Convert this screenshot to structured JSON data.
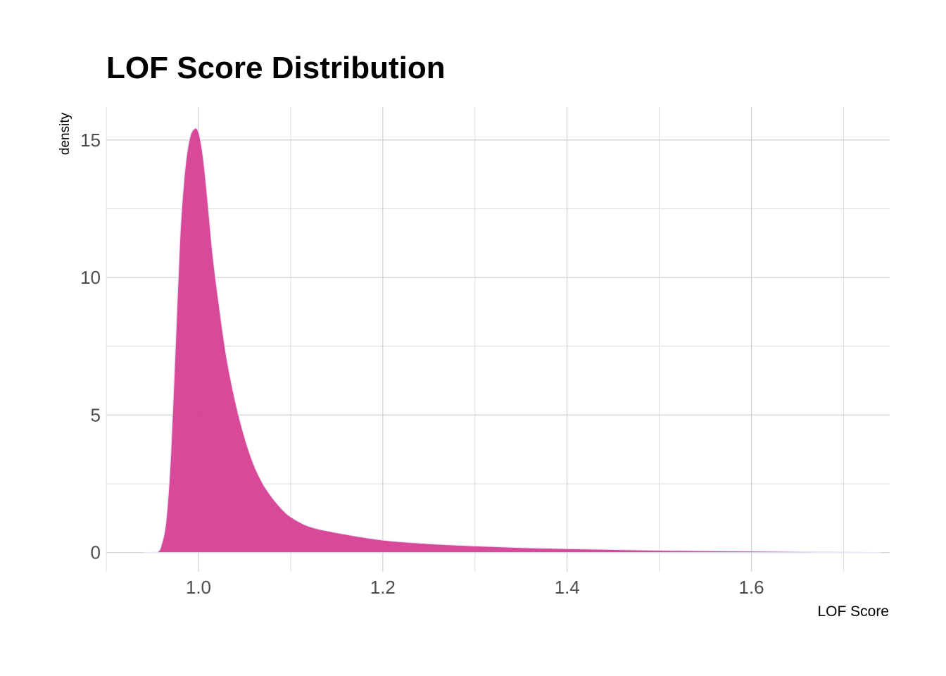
{
  "chart_data": {
    "type": "area",
    "title": "LOF Score Distribution",
    "xlabel": "LOF Score",
    "ylabel": "density",
    "xlim": [
      0.9,
      1.75
    ],
    "ylim": [
      -0.7,
      16.2
    ],
    "x_ticks": [
      1.0,
      1.2,
      1.4,
      1.6
    ],
    "x_tick_labels": [
      "1.0",
      "1.2",
      "1.4",
      "1.6"
    ],
    "y_ticks": [
      0,
      5,
      10,
      15
    ],
    "y_tick_labels": [
      "0",
      "5",
      "10",
      "15"
    ],
    "grid": true,
    "legend": "none",
    "fill_color": "#d63f94",
    "outline_color": "#e6e6f5",
    "series": [
      {
        "x": [
          0.94,
          0.955,
          0.96,
          0.965,
          0.97,
          0.975,
          0.98,
          0.985,
          0.99,
          0.995,
          1.0,
          1.005,
          1.01,
          1.015,
          1.02,
          1.03,
          1.04,
          1.05,
          1.06,
          1.07,
          1.08,
          1.09,
          1.1,
          1.12,
          1.15,
          1.2,
          1.25,
          1.3,
          1.35,
          1.4,
          1.5,
          1.6,
          1.7,
          1.74
        ],
        "y": [
          0.0,
          0.02,
          0.3,
          1.2,
          3.6,
          7.5,
          11.5,
          13.8,
          15.0,
          15.4,
          15.3,
          14.4,
          12.8,
          11.0,
          9.6,
          7.2,
          5.5,
          4.2,
          3.2,
          2.5,
          2.0,
          1.6,
          1.3,
          0.95,
          0.72,
          0.45,
          0.32,
          0.24,
          0.18,
          0.14,
          0.08,
          0.05,
          0.02,
          0.0
        ]
      }
    ]
  }
}
